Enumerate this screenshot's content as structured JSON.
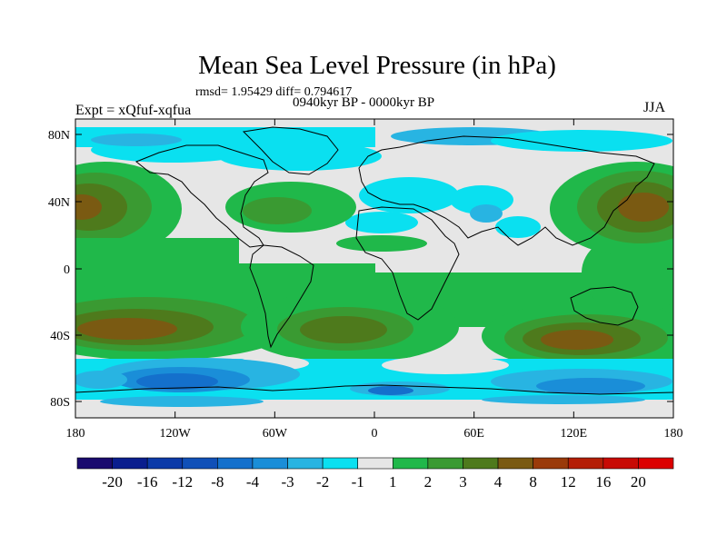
{
  "title": "Mean Sea Level Pressure (in hPa)",
  "stats": "rmsd= 1.95429 diff= 0.794617",
  "experiment": "Expt = xQfuf-xqfua",
  "period": "0940kyr BP - 0000kyr BP",
  "season": "JJA",
  "lat_ticks": [
    "80N",
    "40N",
    "0",
    "40S",
    "80S"
  ],
  "lon_ticks": [
    "180",
    "120W",
    "60W",
    "0",
    "60E",
    "120E",
    "180"
  ],
  "colorbar": {
    "labels": [
      "-20",
      "-16",
      "-12",
      "-8",
      "-4",
      "-3",
      "-2",
      "-1",
      "1",
      "2",
      "3",
      "4",
      "8",
      "12",
      "16",
      "20"
    ],
    "colors": [
      "#1a0a6e",
      "#0a1e8e",
      "#0c3aa8",
      "#1050b8",
      "#1470cc",
      "#1a8ed8",
      "#28b4e2",
      "#0ae0f0",
      "#e6e6e6",
      "#20b84a",
      "#3a9a32",
      "#4e7a1c",
      "#7a5a12",
      "#9a3a0a",
      "#b41e06",
      "#c80a04",
      "#dc0000"
    ]
  },
  "legend_colors": {
    "neutral": "#e6e6e6",
    "green1": "#20b84a",
    "green2": "#3a9a32",
    "olive": "#4e7a1c",
    "brown": "#7a5a12",
    "cyan": "#0ae0f0",
    "lightblue": "#28b4e2",
    "blue": "#1a8ed8",
    "darkblue": "#1470cc",
    "deepblue": "#1050b8"
  }
}
